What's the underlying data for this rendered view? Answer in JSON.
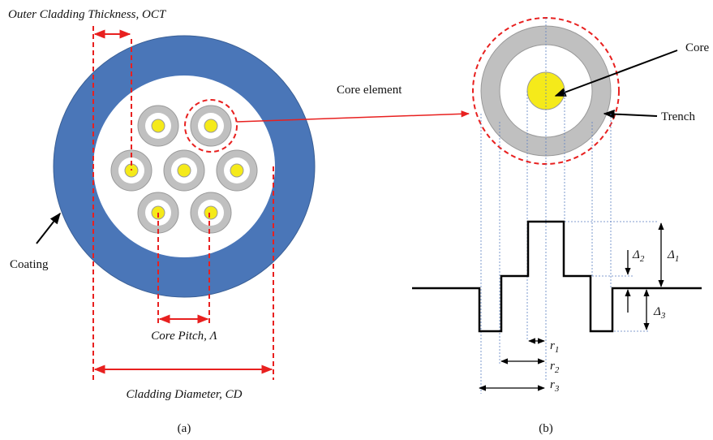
{
  "labels": {
    "oct": "Outer Cladding Thickness, OCT",
    "coating": "Coating",
    "pitch": "Core Pitch, Λ",
    "cd": "Cladding Diameter, CD",
    "caption_a": "(a)",
    "core_element": "Core element",
    "core": "Core",
    "trench": "Trench",
    "caption_b": "(b)"
  },
  "symbols": {
    "r1": {
      "symbol": "r",
      "subscript": "1"
    },
    "r2": {
      "symbol": "r",
      "subscript": "2"
    },
    "r3": {
      "symbol": "r",
      "subscript": "3"
    },
    "d1": {
      "symbol": "Δ",
      "subscript": "1"
    },
    "d2": {
      "symbol": "Δ",
      "subscript": "2"
    },
    "d3": {
      "symbol": "Δ",
      "subscript": "3"
    }
  }
}
